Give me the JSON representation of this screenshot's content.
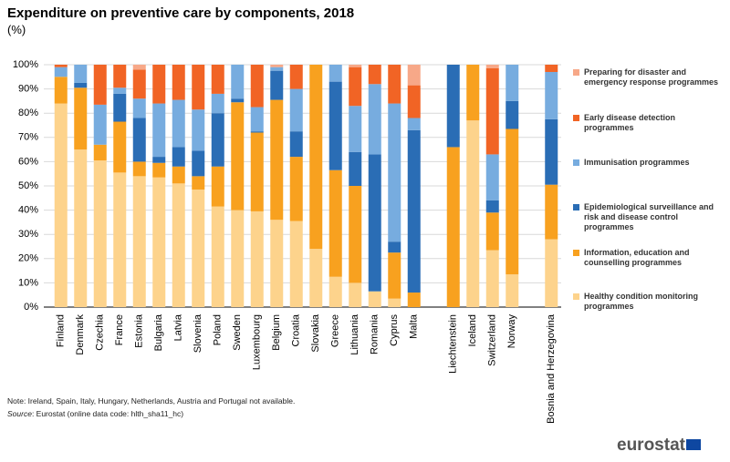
{
  "chart_data": {
    "type": "stacked_bar",
    "title": "Expenditure on preventive care by components, 2018",
    "subtitle": "(%)",
    "categories": [
      "Finland",
      "Denmark",
      "Czechia",
      "France",
      "Estonia",
      "Bulgaria",
      "Latvia",
      "Slovenia",
      "Poland",
      "Sweden",
      "Luxembourg",
      "Belgium",
      "Croatia",
      "Slovakia",
      "Greece",
      "Lithuania",
      "Romania",
      "Cyprus",
      "Malta",
      null,
      "Liechtenstein",
      "Iceland",
      "Switzerland",
      "Norway",
      null,
      "Bosnia and Herzegovina"
    ],
    "series": [
      {
        "name": "Healthy condition monitoring programmes",
        "color": "#fdd38c",
        "values": [
          84,
          65,
          60.5,
          55.5,
          54,
          53.5,
          51,
          48.5,
          41.5,
          40,
          39.5,
          36,
          35.5,
          24,
          12.5,
          10,
          6.5,
          3.5,
          0,
          null,
          0,
          77,
          23.5,
          13.5,
          null,
          28
        ]
      },
      {
        "name": "Information, education and counselling programmes",
        "color": "#f8a11f",
        "values": [
          11,
          25.5,
          6.5,
          21,
          6,
          6,
          7,
          5.5,
          16.5,
          44.5,
          32.5,
          49.5,
          26.5,
          76,
          44,
          40,
          0,
          19,
          6,
          null,
          66,
          23,
          15.5,
          60,
          null,
          22.5
        ]
      },
      {
        "name": "Epidemiological surveillance and risk and disease control programmes",
        "color": "#2a6db5",
        "values": [
          0,
          2,
          0,
          11.5,
          18,
          2.5,
          8,
          10.5,
          22,
          1.5,
          0.5,
          12,
          10.5,
          0,
          36.5,
          14,
          56.5,
          4.5,
          67,
          null,
          34,
          0,
          5,
          11.5,
          null,
          27
        ]
      },
      {
        "name": "Immunisation programmes",
        "color": "#77acdf",
        "values": [
          4,
          7.5,
          16.5,
          2.5,
          8,
          22,
          19.5,
          17,
          8,
          14,
          10,
          1.5,
          17.5,
          0,
          7,
          19,
          29,
          57,
          5,
          null,
          0,
          0,
          19,
          15,
          null,
          19.5
        ]
      },
      {
        "name": "Early disease detection programmes",
        "color": "#f16425",
        "values": [
          1,
          0,
          16.5,
          9.5,
          12,
          16,
          14.5,
          18.5,
          12,
          0,
          17.5,
          0,
          10,
          0,
          0,
          16,
          8,
          16,
          13.5,
          null,
          0,
          0,
          35.5,
          0,
          null,
          3
        ]
      },
      {
        "name": "Preparing for disaster and emergency response programmes",
        "color": "#f7a888",
        "values": [
          0,
          0,
          0,
          0,
          2,
          0,
          0,
          0,
          0,
          0,
          0,
          1,
          0,
          0,
          0,
          1,
          0,
          0,
          8.5,
          null,
          0,
          0,
          1.5,
          0,
          null,
          0
        ]
      }
    ],
    "ylim": [
      0,
      100
    ],
    "yticks": [
      {
        "value": 0,
        "label": "0%"
      },
      {
        "value": 10,
        "label": "10%"
      },
      {
        "value": 20,
        "label": "20%"
      },
      {
        "value": 30,
        "label": "30%"
      },
      {
        "value": 40,
        "label": "40%"
      },
      {
        "value": 50,
        "label": "50%"
      },
      {
        "value": 60,
        "label": "60%"
      },
      {
        "value": 70,
        "label": "70%"
      },
      {
        "value": 80,
        "label": "80%"
      },
      {
        "value": 90,
        "label": "90%"
      },
      {
        "value": 100,
        "label": "100%"
      }
    ],
    "grid": true,
    "legend": "right",
    "note": "Note: Ireland, Spain, Italy, Hungary, Netherlands, Austria and Portugal not available.",
    "source_label": "Source",
    "source": ": Eurostat (online data code: hlth_sha11_hc)",
    "logo": "eurostat"
  }
}
